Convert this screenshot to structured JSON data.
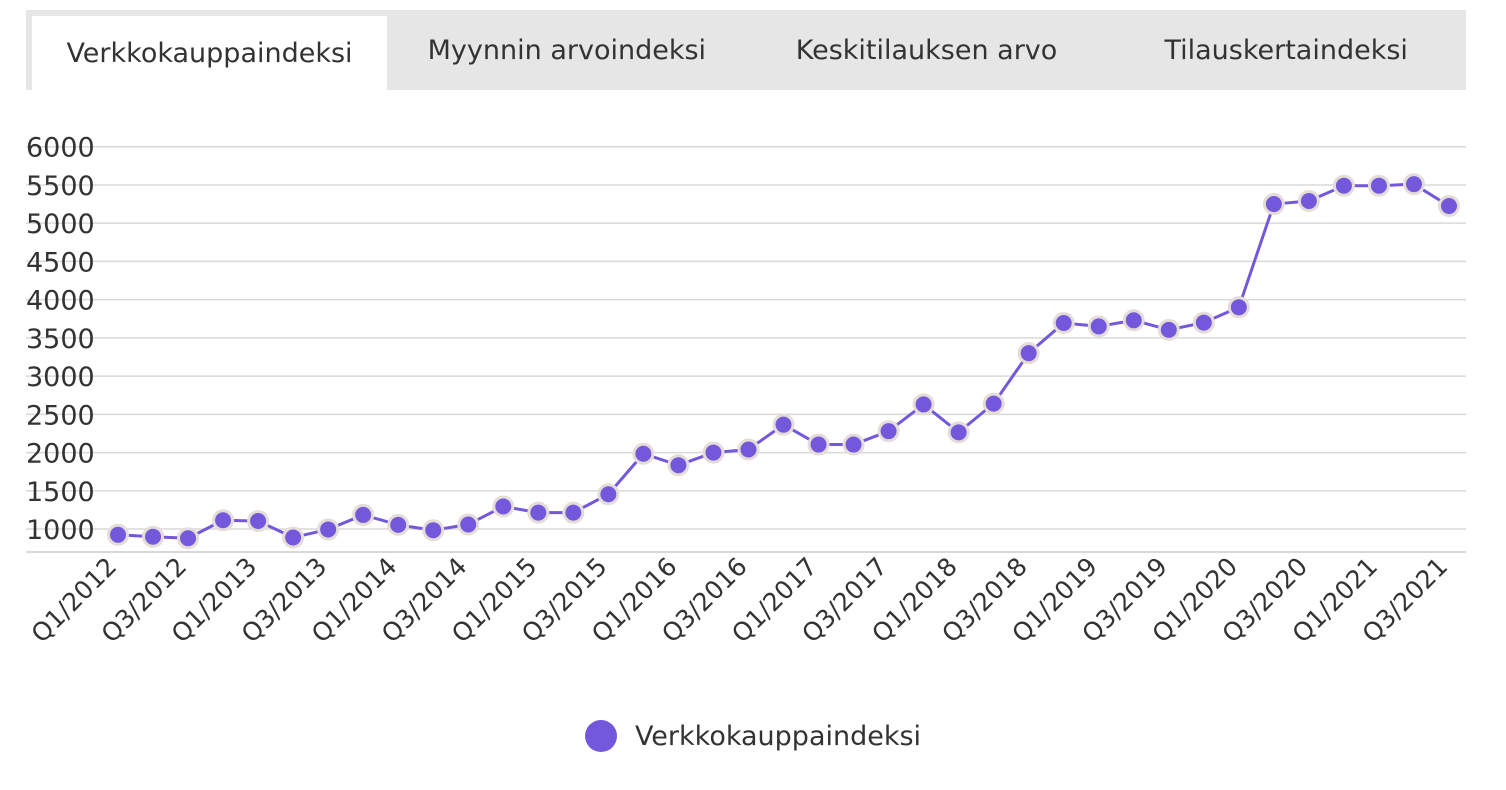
{
  "tabs": [
    {
      "label": "Verkkokauppaindeksi",
      "active": true
    },
    {
      "label": "Myynnin arvoindeksi",
      "active": false
    },
    {
      "label": "Keskitilauksen arvo",
      "active": false
    },
    {
      "label": "Tilauskertaindeksi",
      "active": false
    }
  ],
  "colors": {
    "series": "#7358dc",
    "marker_halo": "#e5dcd8",
    "grid": "#d9d9d9",
    "tab_bg": "#e6e6e6"
  },
  "chart_data": {
    "type": "line",
    "title": "",
    "xlabel": "",
    "ylabel": "",
    "grid": true,
    "legend": "bottom-center",
    "ylim": [
      700,
      6000
    ],
    "yticks": [
      1000,
      1500,
      2000,
      2500,
      3000,
      3500,
      4000,
      4500,
      5000,
      5500,
      6000
    ],
    "categories": [
      "Q1/2012",
      "Q2/2012",
      "Q3/2012",
      "Q4/2012",
      "Q1/2013",
      "Q2/2013",
      "Q3/2013",
      "Q4/2013",
      "Q1/2014",
      "Q2/2014",
      "Q3/2014",
      "Q4/2014",
      "Q1/2015",
      "Q2/2015",
      "Q3/2015",
      "Q4/2015",
      "Q1/2016",
      "Q2/2016",
      "Q3/2016",
      "Q4/2016",
      "Q1/2017",
      "Q2/2017",
      "Q3/2017",
      "Q4/2017",
      "Q1/2018",
      "Q2/2018",
      "Q3/2018",
      "Q4/2018",
      "Q1/2019",
      "Q2/2019",
      "Q3/2019",
      "Q4/2019",
      "Q1/2020",
      "Q2/2020",
      "Q3/2020",
      "Q4/2020",
      "Q1/2021",
      "Q2/2021",
      "Q3/2021"
    ],
    "xtick_labels": [
      "Q1/2012",
      "Q3/2012",
      "Q1/2013",
      "Q3/2013",
      "Q1/2014",
      "Q3/2014",
      "Q1/2015",
      "Q3/2015",
      "Q1/2016",
      "Q3/2016",
      "Q1/2017",
      "Q3/2017",
      "Q1/2018",
      "Q3/2018",
      "Q1/2019",
      "Q3/2019",
      "Q1/2020",
      "Q3/2020",
      "Q1/2021",
      "Q3/2021"
    ],
    "series": [
      {
        "name": "Verkkokauppaindeksi",
        "values": [
          925,
          900,
          880,
          1115,
          1105,
          890,
          995,
          1185,
          1055,
          985,
          1060,
          1295,
          1215,
          1215,
          1455,
          1985,
          1835,
          2000,
          2040,
          2365,
          2105,
          2105,
          2280,
          2630,
          2265,
          2640,
          3300,
          3695,
          3650,
          3730,
          3605,
          3700,
          3900,
          5250,
          5290,
          5490,
          5490,
          5510,
          5225
        ]
      }
    ]
  }
}
